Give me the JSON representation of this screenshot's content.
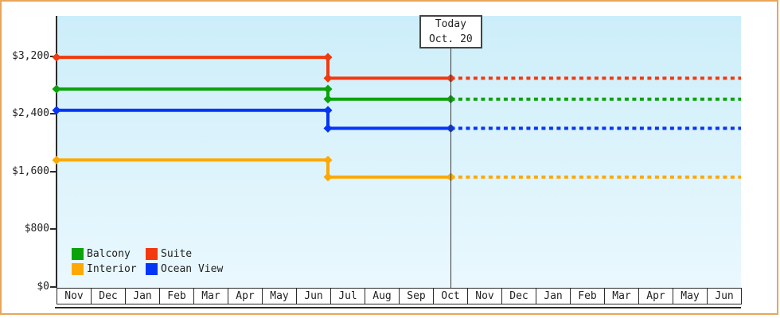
{
  "styles": {
    "frame_border_color": "#e9a65a",
    "plot_bg_top": "#cceefa",
    "plot_bg_bottom": "#eaf8fe",
    "axis_color": "#2b2b2b",
    "text_color": "#222222",
    "today_line_color": "#3a3a3a"
  },
  "chart_data": {
    "type": "line",
    "title": "",
    "x_axis": {
      "labels": [
        "Nov",
        "Dec",
        "Jan",
        "Feb",
        "Mar",
        "Apr",
        "May",
        "Jun",
        "Jul",
        "Aug",
        "Sep",
        "Oct",
        "Nov",
        "Dec",
        "Jan",
        "Feb",
        "Mar",
        "Apr",
        "May",
        "Jun"
      ],
      "months_shown": 20
    },
    "y_axis": {
      "ticks": [
        {
          "label": "$0",
          "value": 0
        },
        {
          "label": "$800",
          "value": 800
        },
        {
          "label": "$1,600",
          "value": 1600
        },
        {
          "label": "$2,400",
          "value": 2400
        },
        {
          "label": "$3,200",
          "value": 3200
        }
      ],
      "ylim": [
        0,
        3750
      ],
      "grid": false
    },
    "today_marker": {
      "line1": "Today",
      "line2": "Oct. 20",
      "month_position": 11.52
    },
    "price_change_month_position": 7.93,
    "series": [
      {
        "name": "Suite",
        "color": "#f2390f",
        "initial_price": 3185,
        "current_price": 2895,
        "solid": [
          [
            0,
            3185
          ],
          [
            7.93,
            3185
          ],
          [
            7.93,
            2895
          ],
          [
            11.52,
            2895
          ]
        ],
        "dashed": [
          [
            11.52,
            2895
          ],
          [
            20,
            2895
          ]
        ]
      },
      {
        "name": "Balcony",
        "color": "#0ba30b",
        "initial_price": 2745,
        "current_price": 2605,
        "solid": [
          [
            0,
            2745
          ],
          [
            7.93,
            2745
          ],
          [
            7.93,
            2605
          ],
          [
            11.52,
            2605
          ]
        ],
        "dashed": [
          [
            11.52,
            2605
          ],
          [
            20,
            2605
          ]
        ]
      },
      {
        "name": "Ocean View",
        "color": "#0535f5",
        "initial_price": 2450,
        "current_price": 2200,
        "solid": [
          [
            0,
            2450
          ],
          [
            7.93,
            2450
          ],
          [
            7.93,
            2200
          ],
          [
            11.52,
            2200
          ]
        ],
        "dashed": [
          [
            11.52,
            2200
          ],
          [
            20,
            2200
          ]
        ]
      },
      {
        "name": "Interior",
        "color": "#fda902",
        "initial_price": 1760,
        "current_price": 1525,
        "solid": [
          [
            0,
            1760
          ],
          [
            7.93,
            1760
          ],
          [
            7.93,
            1525
          ],
          [
            11.52,
            1525
          ]
        ],
        "dashed": [
          [
            11.52,
            1525
          ],
          [
            20,
            1525
          ]
        ]
      }
    ],
    "legend": {
      "position": "bottom-left-inside",
      "entries": [
        {
          "label": "Balcony",
          "color": "#0ba30b"
        },
        {
          "label": "Suite",
          "color": "#f2390f"
        },
        {
          "label": "Interior",
          "color": "#fda902"
        },
        {
          "label": "Ocean View",
          "color": "#0535f5"
        }
      ]
    }
  }
}
